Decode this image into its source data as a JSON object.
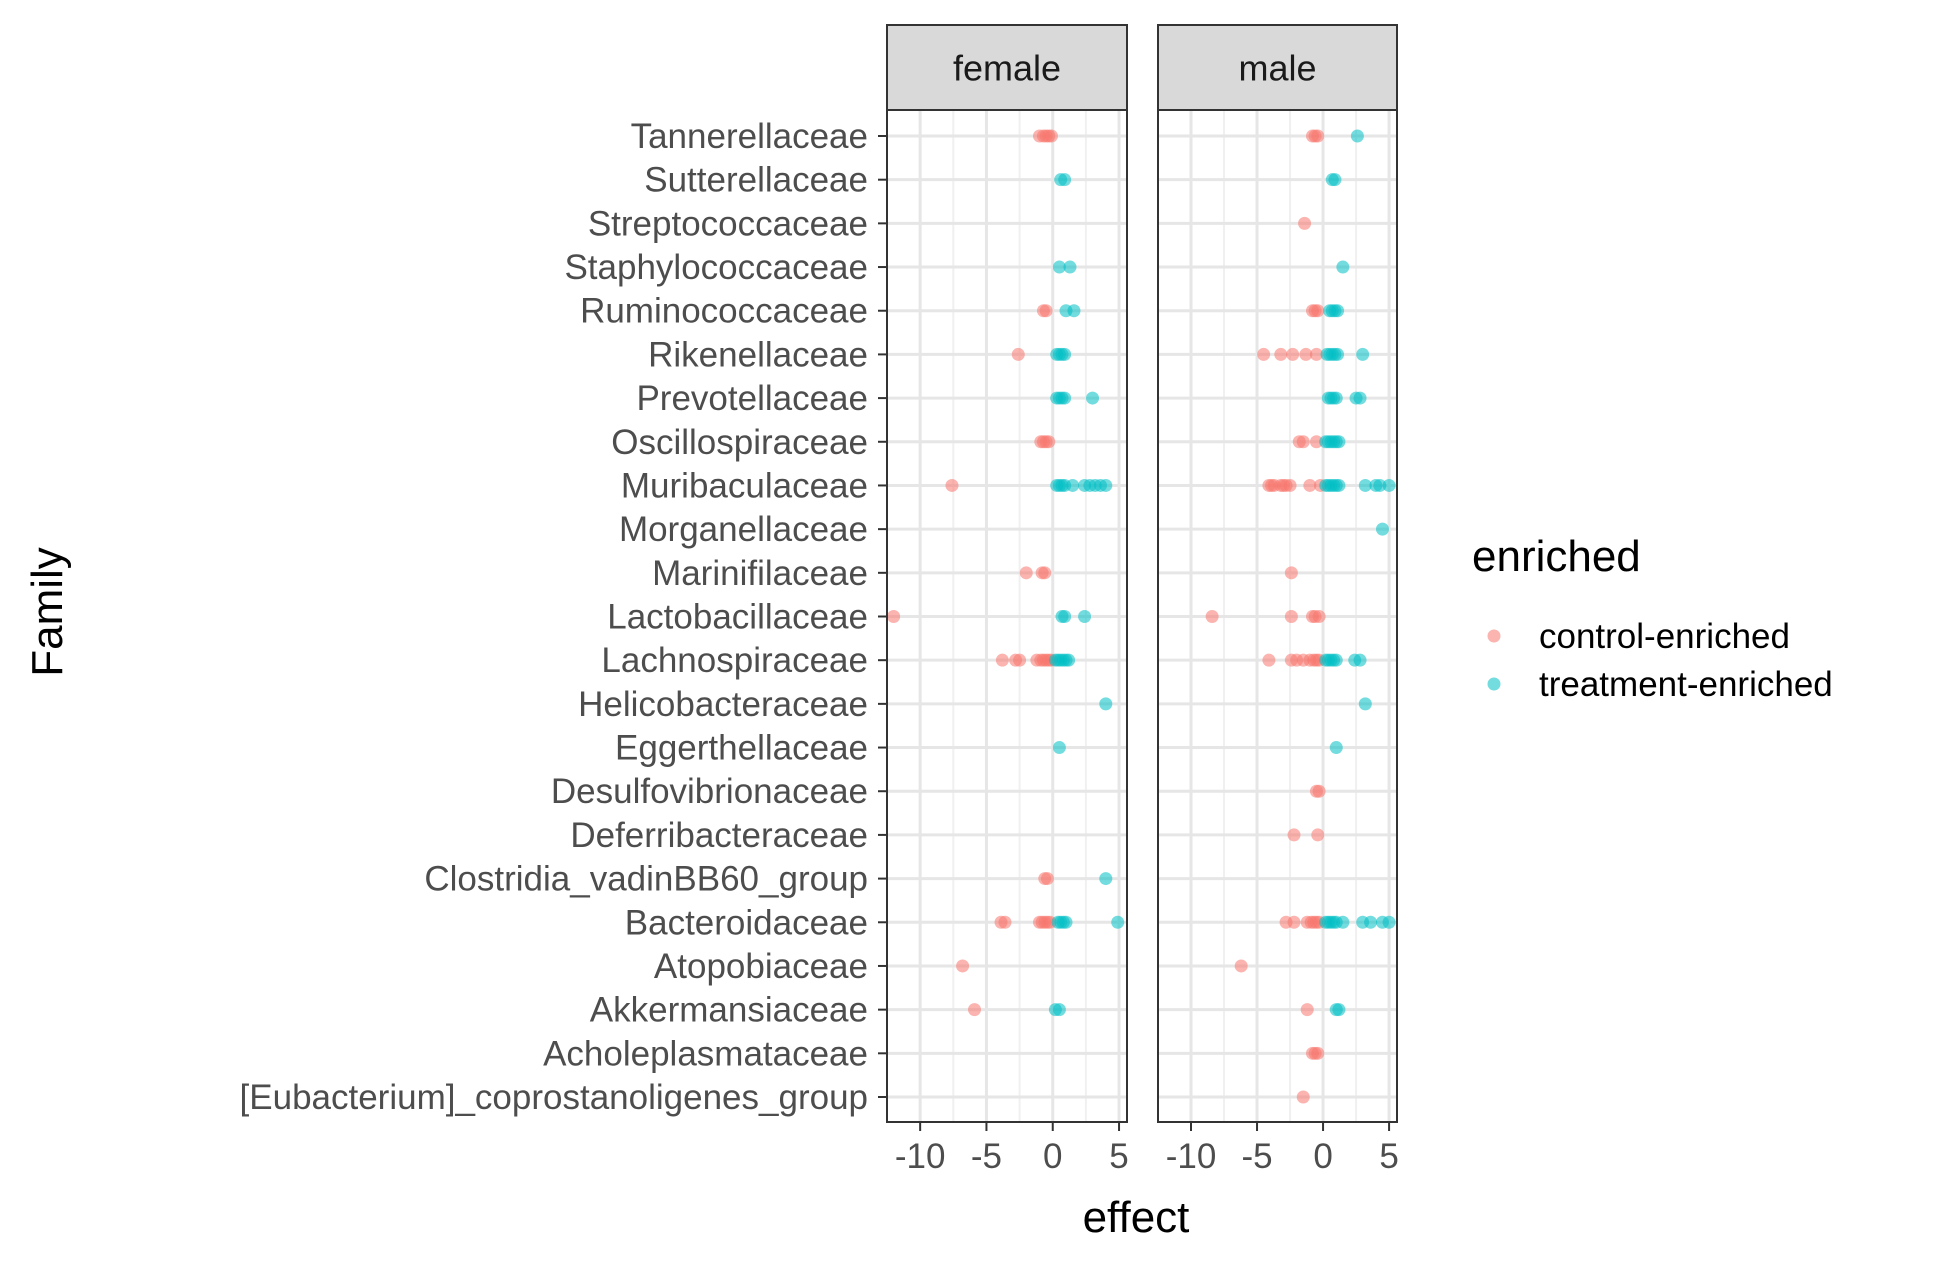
{
  "chart_data": {
    "type": "scatter",
    "xlabel": "effect",
    "ylabel": "Family",
    "xlim": [
      -12.5,
      5.6
    ],
    "x_ticks": [
      -10,
      -5,
      0,
      5
    ],
    "x_tick_labels": [
      "-10",
      "-5",
      "0",
      "5"
    ],
    "grid": true,
    "categories": [
      "Tannerellaceae",
      "Sutterellaceae",
      "Streptococcaceae",
      "Staphylococcaceae",
      "Ruminococcaceae",
      "Rikenellaceae",
      "Prevotellaceae",
      "Oscillospiraceae",
      "Muribaculaceae",
      "Morganellaceae",
      "Marinifilaceae",
      "Lactobacillaceae",
      "Lachnospiraceae",
      "Helicobacteraceae",
      "Eggerthellaceae",
      "Desulfovibrionaceae",
      "Deferribacteraceae",
      "Clostridia_vadinBB60_group",
      "Bacteroidaceae",
      "Atopobiaceae",
      "Akkermansiaceae",
      "Acholeplasmataceae",
      "[Eubacterium]_coprostanoligenes_group"
    ],
    "legend": {
      "title": "enriched",
      "position": "right",
      "entries": [
        {
          "label": "control-enriched",
          "color": "#F8766D"
        },
        {
          "label": "treatment-enriched",
          "color": "#00BFC4"
        }
      ]
    },
    "panels": [
      {
        "strip": "female",
        "series": [
          {
            "name": "control-enriched",
            "points": [
              {
                "family": "Tannerellaceae",
                "x": [
                  -1.0,
                  -0.7,
                  -0.5,
                  -0.3,
                  -0.1
                ]
              },
              {
                "family": "Ruminococcaceae",
                "x": [
                  -0.7,
                  -0.5
                ]
              },
              {
                "family": "Rikenellaceae",
                "x": [
                  -2.6
                ]
              },
              {
                "family": "Oscillospiraceae",
                "x": [
                  -0.9,
                  -0.7,
                  -0.5,
                  -0.3
                ]
              },
              {
                "family": "Muribaculaceae",
                "x": [
                  -7.6
                ]
              },
              {
                "family": "Marinifilaceae",
                "x": [
                  -2.0,
                  -0.8,
                  -0.6
                ]
              },
              {
                "family": "Lactobacillaceae",
                "x": [
                  -12.0
                ]
              },
              {
                "family": "Lachnospiraceae",
                "x": [
                  -3.8,
                  -2.8,
                  -2.5,
                  -1.2,
                  -0.9,
                  -0.7,
                  -0.5,
                  -0.3,
                  -0.1
                ]
              },
              {
                "family": "Clostridia_vadinBB60_group",
                "x": [
                  -0.6,
                  -0.4
                ]
              },
              {
                "family": "Bacteroidaceae",
                "x": [
                  -3.9,
                  -3.6,
                  -1.0,
                  -0.8,
                  -0.6,
                  -0.4,
                  -0.2
                ]
              },
              {
                "family": "Atopobiaceae",
                "x": [
                  -6.8
                ]
              },
              {
                "family": "Akkermansiaceae",
                "x": [
                  -5.9
                ]
              }
            ]
          },
          {
            "name": "treatment-enriched",
            "points": [
              {
                "family": "Sutterellaceae",
                "x": [
                  0.6,
                  0.9
                ]
              },
              {
                "family": "Staphylococcaceae",
                "x": [
                  0.5,
                  1.3
                ]
              },
              {
                "family": "Ruminococcaceae",
                "x": [
                  1.0,
                  1.6
                ]
              },
              {
                "family": "Rikenellaceae",
                "x": [
                  0.3,
                  0.5,
                  0.7,
                  0.9
                ]
              },
              {
                "family": "Prevotellaceae",
                "x": [
                  0.3,
                  0.5,
                  0.7,
                  0.9,
                  3.0
                ]
              },
              {
                "family": "Muribaculaceae",
                "x": [
                  0.3,
                  0.5,
                  0.7,
                  0.9,
                  1.5,
                  2.4,
                  2.8,
                  3.2,
                  3.6,
                  4.0
                ]
              },
              {
                "family": "Lactobacillaceae",
                "x": [
                  0.7,
                  0.9,
                  2.4
                ]
              },
              {
                "family": "Lachnospiraceae",
                "x": [
                  0.2,
                  0.4,
                  0.6,
                  0.8,
                  1.0,
                  1.2
                ]
              },
              {
                "family": "Helicobacteraceae",
                "x": [
                  4.0
                ]
              },
              {
                "family": "Eggerthellaceae",
                "x": [
                  0.5
                ]
              },
              {
                "family": "Clostridia_vadinBB60_group",
                "x": [
                  4.0
                ]
              },
              {
                "family": "Bacteroidaceae",
                "x": [
                  0.4,
                  0.6,
                  0.8,
                  1.0,
                  4.9
                ]
              },
              {
                "family": "Akkermansiaceae",
                "x": [
                  0.2,
                  0.5
                ]
              }
            ]
          }
        ]
      },
      {
        "strip": "male",
        "series": [
          {
            "name": "control-enriched",
            "points": [
              {
                "family": "Tannerellaceae",
                "x": [
                  -0.8,
                  -0.6,
                  -0.4
                ]
              },
              {
                "family": "Streptococcaceae",
                "x": [
                  -1.4
                ]
              },
              {
                "family": "Ruminococcaceae",
                "x": [
                  -0.8,
                  -0.6,
                  -0.4
                ]
              },
              {
                "family": "Rikenellaceae",
                "x": [
                  -4.5,
                  -3.2,
                  -2.3,
                  -1.3,
                  -0.5
                ]
              },
              {
                "family": "Oscillospiraceae",
                "x": [
                  -1.8,
                  -1.5,
                  -0.5
                ]
              },
              {
                "family": "Muribaculaceae",
                "x": [
                  -4.1,
                  -3.9,
                  -3.7,
                  -3.2,
                  -3.0,
                  -2.8,
                  -2.5,
                  -1.0,
                  -0.2
                ]
              },
              {
                "family": "Marinifilaceae",
                "x": [
                  -2.4
                ]
              },
              {
                "family": "Lactobacillaceae",
                "x": [
                  -8.4,
                  -2.4,
                  -0.8,
                  -0.6,
                  -0.3
                ]
              },
              {
                "family": "Lachnospiraceae",
                "x": [
                  -4.1,
                  -2.4,
                  -2.0,
                  -1.5,
                  -1.0,
                  -0.7,
                  -0.5,
                  -0.3
                ]
              },
              {
                "family": "Desulfovibrionaceae",
                "x": [
                  -0.5,
                  -0.3
                ]
              },
              {
                "family": "Deferribacteraceae",
                "x": [
                  -2.2,
                  -0.4
                ]
              },
              {
                "family": "Bacteroidaceae",
                "x": [
                  -2.8,
                  -2.2,
                  -1.2,
                  -0.9,
                  -0.7,
                  -0.5,
                  -0.3
                ]
              },
              {
                "family": "Atopobiaceae",
                "x": [
                  -6.2
                ]
              },
              {
                "family": "Akkermansiaceae",
                "x": [
                  -1.2
                ]
              },
              {
                "family": "Acholeplasmataceae",
                "x": [
                  -0.8,
                  -0.6,
                  -0.4
                ]
              },
              {
                "family": "[Eubacterium]_coprostanoligenes_group",
                "x": [
                  -1.5
                ]
              }
            ]
          },
          {
            "name": "treatment-enriched",
            "points": [
              {
                "family": "Tannerellaceae",
                "x": [
                  2.6
                ]
              },
              {
                "family": "Sutterellaceae",
                "x": [
                  0.7,
                  0.9
                ]
              },
              {
                "family": "Staphylococcaceae",
                "x": [
                  1.5
                ]
              },
              {
                "family": "Ruminococcaceae",
                "x": [
                  0.5,
                  0.7,
                  0.9,
                  1.1
                ]
              },
              {
                "family": "Rikenellaceae",
                "x": [
                  0.3,
                  0.5,
                  0.7,
                  0.9,
                  1.1,
                  3.0
                ]
              },
              {
                "family": "Prevotellaceae",
                "x": [
                  0.4,
                  0.6,
                  0.8,
                  1.0,
                  2.5,
                  2.8
                ]
              },
              {
                "family": "Oscillospiraceae",
                "x": [
                  0.2,
                  0.4,
                  0.6,
                  0.8,
                  1.0,
                  1.2
                ]
              },
              {
                "family": "Muribaculaceae",
                "x": [
                  0.2,
                  0.4,
                  0.6,
                  0.8,
                  1.0,
                  1.2,
                  3.2,
                  4.0,
                  4.3,
                  5.0
                ]
              },
              {
                "family": "Morganellaceae",
                "x": [
                  4.5
                ]
              },
              {
                "family": "Lachnospiraceae",
                "x": [
                  0.2,
                  0.4,
                  0.6,
                  0.8,
                  1.0,
                  2.4,
                  2.8
                ]
              },
              {
                "family": "Helicobacteraceae",
                "x": [
                  3.2
                ]
              },
              {
                "family": "Eggerthellaceae",
                "x": [
                  1.0
                ]
              },
              {
                "family": "Bacteroidaceae",
                "x": [
                  0.2,
                  0.4,
                  0.6,
                  0.8,
                  1.0,
                  1.5,
                  3.0,
                  3.6,
                  4.5,
                  5.0
                ]
              },
              {
                "family": "Akkermansiaceae",
                "x": [
                  1.0,
                  1.2
                ]
              }
            ]
          }
        ]
      }
    ]
  }
}
